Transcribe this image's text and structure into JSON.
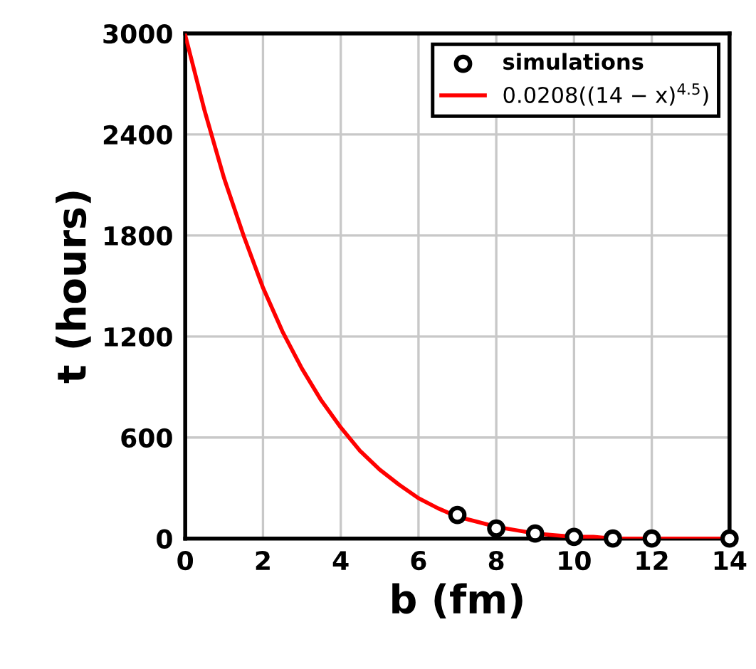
{
  "chart_data": {
    "type": "line",
    "xlabel": "b (fm)",
    "ylabel": "t (hours)",
    "xlim": [
      0,
      14
    ],
    "ylim": [
      0,
      3000
    ],
    "xticks": [
      0,
      2,
      4,
      6,
      8,
      10,
      12,
      14
    ],
    "yticks": [
      0,
      600,
      1200,
      1800,
      2400,
      3000
    ],
    "grid": true,
    "legend": "top right",
    "series": [
      {
        "name": "simulations",
        "type": "scatter",
        "color": "#000000",
        "marker": "circle",
        "x": [
          7,
          8,
          9,
          10,
          11,
          12,
          14
        ],
        "values": [
          140,
          60,
          30,
          10,
          0,
          0,
          0
        ]
      },
      {
        "name": "0.0208((14 − x)$^{4.5}$)",
        "color": "#ff0000",
        "marker": "none",
        "line_style": "solid",
        "x": [
          0,
          0.5,
          1,
          1.5,
          2,
          2.5,
          3,
          3.5,
          4,
          4.5,
          5,
          5.5,
          6,
          6.5,
          7,
          7.5,
          8,
          8.5,
          9,
          9.5,
          10,
          10.5,
          11,
          12,
          13,
          14
        ],
        "values": [
          2990,
          2540,
          2140,
          1800,
          1490,
          1230,
          1010,
          820,
          660,
          520,
          410,
          320,
          240,
          180,
          130,
          100,
          70,
          50,
          30,
          20,
          10,
          10,
          0,
          0,
          0,
          0
        ]
      }
    ]
  }
}
